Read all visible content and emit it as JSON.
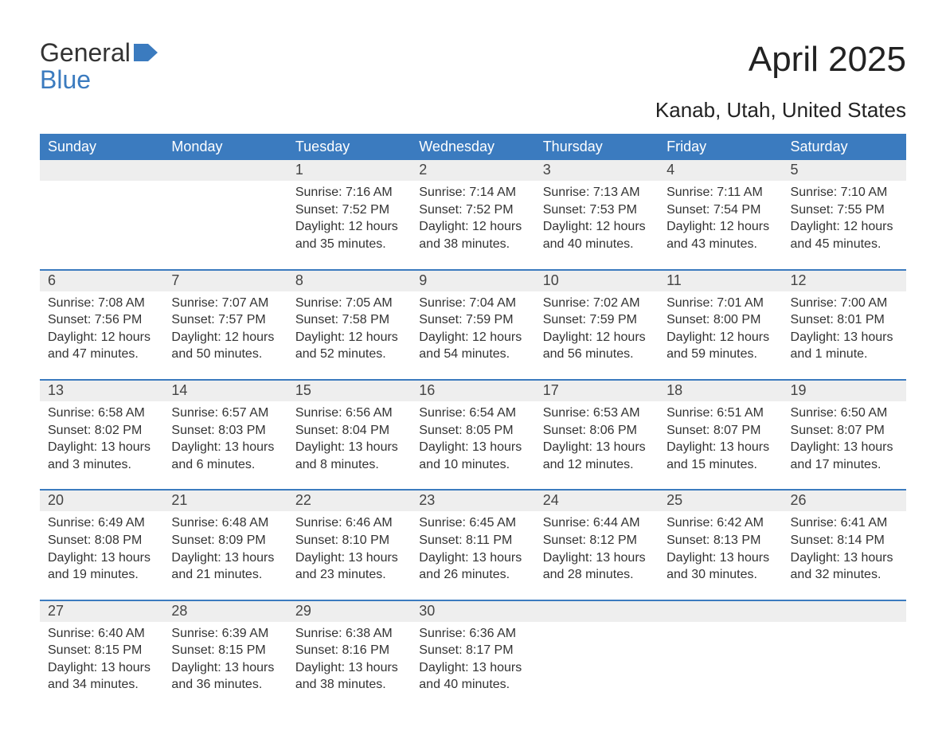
{
  "brand": {
    "line1": "General",
    "line2": "Blue"
  },
  "title": "April 2025",
  "subtitle": "Kanab, Utah, United States",
  "colors": {
    "header_bg": "#3b7bbf",
    "header_text": "#ffffff",
    "band_bg": "#eeeeee",
    "rule": "#3b7bbf",
    "text": "#333333",
    "background": "#ffffff"
  },
  "layout": {
    "columns": 7,
    "rows": 5,
    "first_day_column_index": 2
  },
  "day_headers": [
    "Sunday",
    "Monday",
    "Tuesday",
    "Wednesday",
    "Thursday",
    "Friday",
    "Saturday"
  ],
  "labels": {
    "sunrise": "Sunrise",
    "sunset": "Sunset",
    "daylight": "Daylight"
  },
  "days": [
    {
      "n": 1,
      "sunrise": "7:16 AM",
      "sunset": "7:52 PM",
      "daylight": "12 hours and 35 minutes."
    },
    {
      "n": 2,
      "sunrise": "7:14 AM",
      "sunset": "7:52 PM",
      "daylight": "12 hours and 38 minutes."
    },
    {
      "n": 3,
      "sunrise": "7:13 AM",
      "sunset": "7:53 PM",
      "daylight": "12 hours and 40 minutes."
    },
    {
      "n": 4,
      "sunrise": "7:11 AM",
      "sunset": "7:54 PM",
      "daylight": "12 hours and 43 minutes."
    },
    {
      "n": 5,
      "sunrise": "7:10 AM",
      "sunset": "7:55 PM",
      "daylight": "12 hours and 45 minutes."
    },
    {
      "n": 6,
      "sunrise": "7:08 AM",
      "sunset": "7:56 PM",
      "daylight": "12 hours and 47 minutes."
    },
    {
      "n": 7,
      "sunrise": "7:07 AM",
      "sunset": "7:57 PM",
      "daylight": "12 hours and 50 minutes."
    },
    {
      "n": 8,
      "sunrise": "7:05 AM",
      "sunset": "7:58 PM",
      "daylight": "12 hours and 52 minutes."
    },
    {
      "n": 9,
      "sunrise": "7:04 AM",
      "sunset": "7:59 PM",
      "daylight": "12 hours and 54 minutes."
    },
    {
      "n": 10,
      "sunrise": "7:02 AM",
      "sunset": "7:59 PM",
      "daylight": "12 hours and 56 minutes."
    },
    {
      "n": 11,
      "sunrise": "7:01 AM",
      "sunset": "8:00 PM",
      "daylight": "12 hours and 59 minutes."
    },
    {
      "n": 12,
      "sunrise": "7:00 AM",
      "sunset": "8:01 PM",
      "daylight": "13 hours and 1 minute."
    },
    {
      "n": 13,
      "sunrise": "6:58 AM",
      "sunset": "8:02 PM",
      "daylight": "13 hours and 3 minutes."
    },
    {
      "n": 14,
      "sunrise": "6:57 AM",
      "sunset": "8:03 PM",
      "daylight": "13 hours and 6 minutes."
    },
    {
      "n": 15,
      "sunrise": "6:56 AM",
      "sunset": "8:04 PM",
      "daylight": "13 hours and 8 minutes."
    },
    {
      "n": 16,
      "sunrise": "6:54 AM",
      "sunset": "8:05 PM",
      "daylight": "13 hours and 10 minutes."
    },
    {
      "n": 17,
      "sunrise": "6:53 AM",
      "sunset": "8:06 PM",
      "daylight": "13 hours and 12 minutes."
    },
    {
      "n": 18,
      "sunrise": "6:51 AM",
      "sunset": "8:07 PM",
      "daylight": "13 hours and 15 minutes."
    },
    {
      "n": 19,
      "sunrise": "6:50 AM",
      "sunset": "8:07 PM",
      "daylight": "13 hours and 17 minutes."
    },
    {
      "n": 20,
      "sunrise": "6:49 AM",
      "sunset": "8:08 PM",
      "daylight": "13 hours and 19 minutes."
    },
    {
      "n": 21,
      "sunrise": "6:48 AM",
      "sunset": "8:09 PM",
      "daylight": "13 hours and 21 minutes."
    },
    {
      "n": 22,
      "sunrise": "6:46 AM",
      "sunset": "8:10 PM",
      "daylight": "13 hours and 23 minutes."
    },
    {
      "n": 23,
      "sunrise": "6:45 AM",
      "sunset": "8:11 PM",
      "daylight": "13 hours and 26 minutes."
    },
    {
      "n": 24,
      "sunrise": "6:44 AM",
      "sunset": "8:12 PM",
      "daylight": "13 hours and 28 minutes."
    },
    {
      "n": 25,
      "sunrise": "6:42 AM",
      "sunset": "8:13 PM",
      "daylight": "13 hours and 30 minutes."
    },
    {
      "n": 26,
      "sunrise": "6:41 AM",
      "sunset": "8:14 PM",
      "daylight": "13 hours and 32 minutes."
    },
    {
      "n": 27,
      "sunrise": "6:40 AM",
      "sunset": "8:15 PM",
      "daylight": "13 hours and 34 minutes."
    },
    {
      "n": 28,
      "sunrise": "6:39 AM",
      "sunset": "8:15 PM",
      "daylight": "13 hours and 36 minutes."
    },
    {
      "n": 29,
      "sunrise": "6:38 AM",
      "sunset": "8:16 PM",
      "daylight": "13 hours and 38 minutes."
    },
    {
      "n": 30,
      "sunrise": "6:36 AM",
      "sunset": "8:17 PM",
      "daylight": "13 hours and 40 minutes."
    }
  ]
}
